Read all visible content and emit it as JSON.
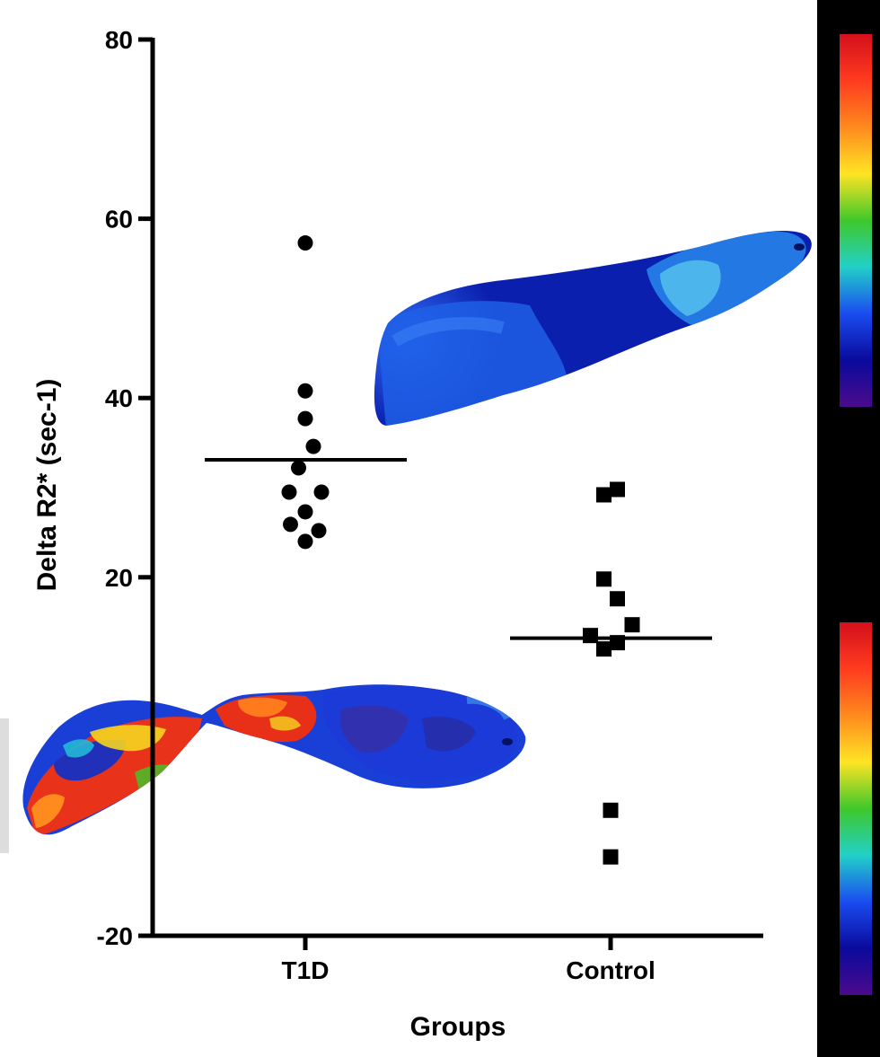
{
  "chart_data": {
    "type": "scatter",
    "xlabel": "Groups",
    "ylabel": "Delta R2* (sec-1)",
    "ylim": [
      -20,
      80
    ],
    "yticks": [
      -20,
      20,
      40,
      60,
      80
    ],
    "categories": [
      "T1D",
      "Control"
    ],
    "grid": false,
    "series": [
      {
        "name": "T1D",
        "marker": "circle",
        "points": [
          {
            "x": -0.12,
            "y": 29.5
          },
          {
            "x": 0.0,
            "y": 57.3
          },
          {
            "x": 0.0,
            "y": 40.8
          },
          {
            "x": 0.0,
            "y": 37.7
          },
          {
            "x": 0.06,
            "y": 34.6
          },
          {
            "x": -0.05,
            "y": 32.2
          },
          {
            "x": 0.12,
            "y": 29.5
          },
          {
            "x": 0.0,
            "y": 27.3
          },
          {
            "x": -0.11,
            "y": 25.9
          },
          {
            "x": 0.1,
            "y": 25.2
          },
          {
            "x": 0.0,
            "y": 24.0
          }
        ],
        "mean": 33.1
      },
      {
        "name": "Control",
        "marker": "square",
        "points": [
          {
            "x": -0.05,
            "y": 29.2
          },
          {
            "x": 0.05,
            "y": 29.8
          },
          {
            "x": -0.05,
            "y": 19.8
          },
          {
            "x": 0.05,
            "y": 17.6
          },
          {
            "x": 0.16,
            "y": 14.7
          },
          {
            "x": -0.15,
            "y": 13.5
          },
          {
            "x": 0.05,
            "y": 12.7
          },
          {
            "x": -0.05,
            "y": 12.0
          },
          {
            "x": 0.0,
            "y": -6.0
          },
          {
            "x": 0.0,
            "y": -11.2
          }
        ],
        "mean": 13.2
      }
    ],
    "colorbars": [
      {
        "colors": [
          "#d4101c",
          "#ff3b1f",
          "#ff8a1e",
          "#ffe424",
          "#3ec82a",
          "#22d0c8",
          "#1a4cf0",
          "#0a0a9c",
          "#4b0a8c"
        ]
      },
      {
        "colors": [
          "#d4101c",
          "#ff3b1f",
          "#ff8a1e",
          "#ffe424",
          "#3ec82a",
          "#22d0c8",
          "#1a4cf0",
          "#0a0a9c",
          "#4b0a8c"
        ]
      }
    ],
    "overlays": [
      "upper-organ-map",
      "lower-organ-map"
    ]
  }
}
